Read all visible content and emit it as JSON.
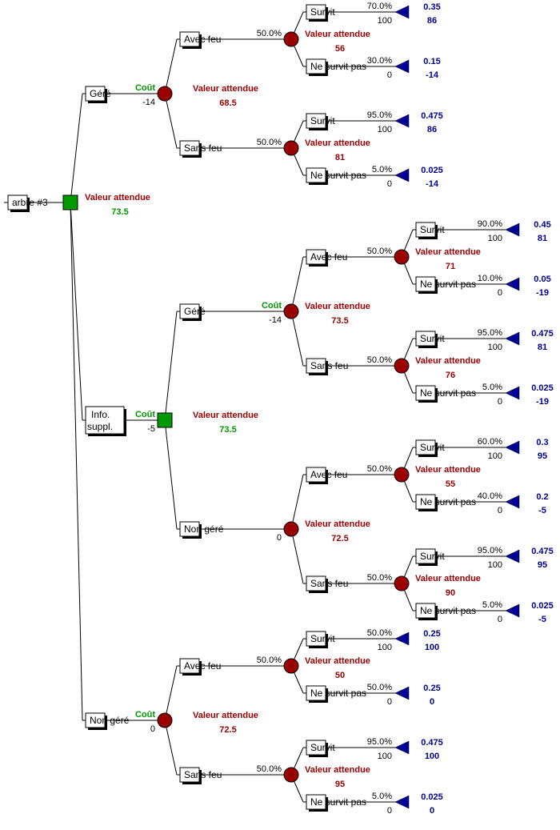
{
  "colors": {
    "chance": "#990000",
    "decision": "#009900",
    "terminal": "#000099",
    "ev_text": "#990000",
    "cost_text": "#009900",
    "leaf_text": "#000099"
  },
  "ev_label": "Valeur attendue",
  "tree": {
    "label": "arbre #3",
    "type": "decision",
    "ev": "73.5",
    "ev_color": "green",
    "children": [
      {
        "label": "Géré",
        "cost_label": "Coût",
        "cost": "-14",
        "type": "chance",
        "ev": "68.5",
        "children": [
          {
            "label": "Avec feu",
            "prob": "50.0%",
            "type": "chance",
            "ev": "56",
            "children": [
              {
                "label": "Survit",
                "prob": "70.0%",
                "payoff": "100",
                "type": "terminal",
                "result_prob": "0.35",
                "result_value": "86"
              },
              {
                "label": "Ne survit pas",
                "prob": "30.0%",
                "payoff": "0",
                "type": "terminal",
                "result_prob": "0.15",
                "result_value": "-14"
              }
            ]
          },
          {
            "label": "Sans feu",
            "prob": "50.0%",
            "type": "chance",
            "ev": "81",
            "children": [
              {
                "label": "Survit",
                "prob": "95.0%",
                "payoff": "100",
                "type": "terminal",
                "result_prob": "0.475",
                "result_value": "86"
              },
              {
                "label": "Ne survit pas",
                "prob": "5.0%",
                "payoff": "0",
                "type": "terminal",
                "result_prob": "0.025",
                "result_value": "-14"
              }
            ]
          }
        ]
      },
      {
        "label": "Info.\nsuppl.",
        "cost_label": "Coût",
        "cost": "-5",
        "type": "decision",
        "ev": "73.5",
        "ev_color": "green",
        "children": [
          {
            "label": "Géré",
            "cost_label": "Coût",
            "cost": "-14",
            "type": "chance",
            "ev": "73.5",
            "children": [
              {
                "label": "Avec feu",
                "prob": "50.0%",
                "type": "chance",
                "ev": "71",
                "children": [
                  {
                    "label": "Survit",
                    "prob": "90.0%",
                    "payoff": "100",
                    "type": "terminal",
                    "result_prob": "0.45",
                    "result_value": "81"
                  },
                  {
                    "label": "Ne survit pas",
                    "prob": "10.0%",
                    "payoff": "0",
                    "type": "terminal",
                    "result_prob": "0.05",
                    "result_value": "-19"
                  }
                ]
              },
              {
                "label": "Sans feu",
                "prob": "50.0%",
                "type": "chance",
                "ev": "76",
                "children": [
                  {
                    "label": "Survit",
                    "prob": "95.0%",
                    "payoff": "100",
                    "type": "terminal",
                    "result_prob": "0.475",
                    "result_value": "81"
                  },
                  {
                    "label": "Ne survit pas",
                    "prob": "5.0%",
                    "payoff": "0",
                    "type": "terminal",
                    "result_prob": "0.025",
                    "result_value": "-19"
                  }
                ]
              }
            ]
          },
          {
            "label": "Non géré",
            "cost": "0",
            "type": "chance",
            "ev": "72.5",
            "children": [
              {
                "label": "Avec feu",
                "prob": "50.0%",
                "type": "chance",
                "ev": "55",
                "children": [
                  {
                    "label": "Survit",
                    "prob": "60.0%",
                    "payoff": "100",
                    "type": "terminal",
                    "result_prob": "0.3",
                    "result_value": "95"
                  },
                  {
                    "label": "Ne survit pas",
                    "prob": "40.0%",
                    "payoff": "0",
                    "type": "terminal",
                    "result_prob": "0.2",
                    "result_value": "-5"
                  }
                ]
              },
              {
                "label": "Sans feu",
                "prob": "50.0%",
                "type": "chance",
                "ev": "90",
                "children": [
                  {
                    "label": "Survit",
                    "prob": "95.0%",
                    "payoff": "100",
                    "type": "terminal",
                    "result_prob": "0.475",
                    "result_value": "95"
                  },
                  {
                    "label": "Ne survit pas",
                    "prob": "5.0%",
                    "payoff": "0",
                    "type": "terminal",
                    "result_prob": "0.025",
                    "result_value": "-5"
                  }
                ]
              }
            ]
          }
        ]
      },
      {
        "label": "Non géré",
        "cost_label": "Coût",
        "cost": "0",
        "type": "chance",
        "ev": "72.5",
        "children": [
          {
            "label": "Avec feu",
            "prob": "50.0%",
            "type": "chance",
            "ev": "50",
            "children": [
              {
                "label": "Survit",
                "prob": "50.0%",
                "payoff": "100",
                "type": "terminal",
                "result_prob": "0.25",
                "result_value": "100"
              },
              {
                "label": "Ne survit pas",
                "prob": "50.0%",
                "payoff": "0",
                "type": "terminal",
                "result_prob": "0.25",
                "result_value": "0"
              }
            ]
          },
          {
            "label": "Sans feu",
            "prob": "50.0%",
            "type": "chance",
            "ev": "95",
            "children": [
              {
                "label": "Survit",
                "prob": "95.0%",
                "payoff": "100",
                "type": "terminal",
                "result_prob": "0.475",
                "result_value": "100"
              },
              {
                "label": "Ne survit pas",
                "prob": "5.0%",
                "payoff": "0",
                "type": "terminal",
                "result_prob": "0.025",
                "result_value": "0"
              }
            ]
          }
        ]
      }
    ]
  }
}
